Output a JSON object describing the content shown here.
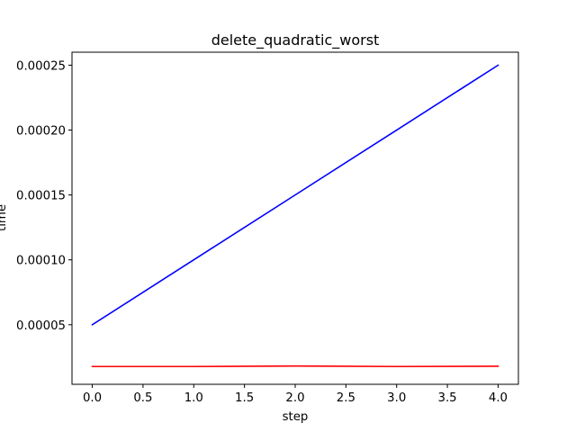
{
  "chart_data": {
    "type": "line",
    "title": "delete_quadratic_worst",
    "xlabel": "step",
    "ylabel": "time",
    "x": [
      0,
      1,
      2,
      3,
      4
    ],
    "xlim": [
      -0.2,
      4.2
    ],
    "ylim": [
      4.1e-06,
      0.00026
    ],
    "xticks": [
      0.0,
      0.5,
      1.0,
      1.5,
      2.0,
      2.5,
      3.0,
      3.5,
      4.0
    ],
    "xtick_labels": [
      "0.0",
      "0.5",
      "1.0",
      "1.5",
      "2.0",
      "2.5",
      "3.0",
      "3.5",
      "4.0"
    ],
    "yticks": [
      5e-05,
      0.0001,
      0.00015,
      0.0002,
      0.00025
    ],
    "ytick_labels": [
      "0.00005",
      "0.00010",
      "0.00015",
      "0.00020",
      "0.00025"
    ],
    "grid": false,
    "series": [
      {
        "color": "#0000ff",
        "values": [
          5e-05,
          0.0001,
          0.00015,
          0.0002,
          0.00025
        ]
      },
      {
        "color": "#ff0000",
        "values": [
          1.78e-05,
          1.78e-05,
          1.82e-05,
          1.78e-05,
          1.8e-05
        ]
      }
    ]
  }
}
